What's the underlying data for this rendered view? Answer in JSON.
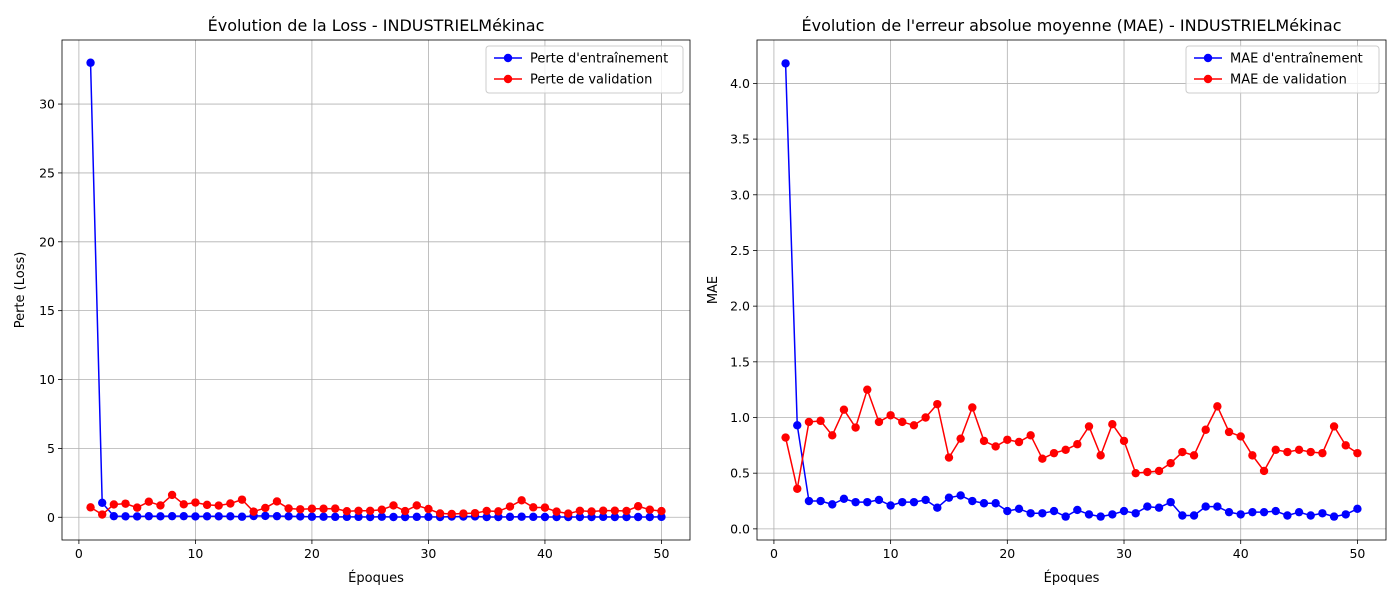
{
  "chart_data": [
    {
      "type": "line",
      "title": "Évolution de la Loss - INDUSTRIELMékinac",
      "xlabel": "Époques",
      "ylabel": "Perte (Loss)",
      "xlim": [
        -1.45,
        52.45
      ],
      "ylim": [
        -1.65,
        34.65
      ],
      "xticks": [
        0,
        10,
        20,
        30,
        40,
        50
      ],
      "xtick_labels": [
        "0",
        "10",
        "20",
        "30",
        "40",
        "50"
      ],
      "yticks": [
        0,
        5,
        10,
        15,
        20,
        25,
        30
      ],
      "ytick_labels": [
        "0",
        "5",
        "10",
        "15",
        "20",
        "25",
        "30"
      ],
      "grid": true,
      "legend_position": "top-right",
      "x": [
        1,
        2,
        3,
        4,
        5,
        6,
        7,
        8,
        9,
        10,
        11,
        12,
        13,
        14,
        15,
        16,
        17,
        18,
        19,
        20,
        21,
        22,
        23,
        24,
        25,
        26,
        27,
        28,
        29,
        30,
        31,
        32,
        33,
        34,
        35,
        36,
        37,
        38,
        39,
        40,
        41,
        42,
        43,
        44,
        45,
        46,
        47,
        48,
        49,
        50
      ],
      "series": [
        {
          "name": "Perte d'entraînement",
          "color": "#0000ff",
          "values": [
            33.0,
            1.05,
            0.08,
            0.07,
            0.06,
            0.08,
            0.07,
            0.08,
            0.08,
            0.06,
            0.07,
            0.07,
            0.07,
            0.04,
            0.09,
            0.1,
            0.08,
            0.07,
            0.06,
            0.04,
            0.04,
            0.03,
            0.03,
            0.03,
            0.02,
            0.04,
            0.02,
            0.02,
            0.03,
            0.03,
            0.02,
            0.05,
            0.05,
            0.06,
            0.02,
            0.02,
            0.03,
            0.04,
            0.03,
            0.02,
            0.02,
            0.02,
            0.02,
            0.02,
            0.03,
            0.02,
            0.02,
            0.02,
            0.02,
            0.03
          ]
        },
        {
          "name": "Perte de validation",
          "color": "#ff0000",
          "values": [
            0.72,
            0.2,
            0.93,
            0.99,
            0.7,
            1.13,
            0.86,
            1.62,
            0.94,
            1.07,
            0.9,
            0.85,
            1.0,
            1.28,
            0.41,
            0.68,
            1.15,
            0.64,
            0.58,
            0.62,
            0.62,
            0.63,
            0.44,
            0.47,
            0.47,
            0.55,
            0.86,
            0.45,
            0.86,
            0.6,
            0.28,
            0.24,
            0.27,
            0.3,
            0.46,
            0.43,
            0.78,
            1.23,
            0.72,
            0.7,
            0.41,
            0.27,
            0.47,
            0.42,
            0.48,
            0.48,
            0.46,
            0.8,
            0.55,
            0.45
          ]
        }
      ]
    },
    {
      "type": "line",
      "title": "Évolution de l'erreur absolue moyenne (MAE) - INDUSTRIELMékinac",
      "xlabel": "Époques",
      "ylabel": "MAE",
      "xlim": [
        -1.45,
        52.45
      ],
      "ylim": [
        -0.1,
        4.39
      ],
      "xticks": [
        0,
        10,
        20,
        30,
        40,
        50
      ],
      "xtick_labels": [
        "0",
        "10",
        "20",
        "30",
        "40",
        "50"
      ],
      "yticks": [
        0,
        0.5,
        1.0,
        1.5,
        2.0,
        2.5,
        3.0,
        3.5,
        4.0
      ],
      "ytick_labels": [
        "0.0",
        "0.5",
        "1.0",
        "1.5",
        "2.0",
        "2.5",
        "3.0",
        "3.5",
        "4.0"
      ],
      "grid": true,
      "legend_position": "top-right",
      "x": [
        1,
        2,
        3,
        4,
        5,
        6,
        7,
        8,
        9,
        10,
        11,
        12,
        13,
        14,
        15,
        16,
        17,
        18,
        19,
        20,
        21,
        22,
        23,
        24,
        25,
        26,
        27,
        28,
        29,
        30,
        31,
        32,
        33,
        34,
        35,
        36,
        37,
        38,
        39,
        40,
        41,
        42,
        43,
        44,
        45,
        46,
        47,
        48,
        49,
        50
      ],
      "series": [
        {
          "name": "MAE d'entraînement",
          "color": "#0000ff",
          "values": [
            4.18,
            0.93,
            0.25,
            0.25,
            0.22,
            0.27,
            0.24,
            0.24,
            0.26,
            0.21,
            0.24,
            0.24,
            0.26,
            0.19,
            0.28,
            0.3,
            0.25,
            0.23,
            0.23,
            0.16,
            0.18,
            0.14,
            0.14,
            0.16,
            0.11,
            0.17,
            0.13,
            0.11,
            0.13,
            0.16,
            0.14,
            0.2,
            0.19,
            0.24,
            0.12,
            0.12,
            0.2,
            0.2,
            0.15,
            0.13,
            0.15,
            0.15,
            0.16,
            0.12,
            0.15,
            0.12,
            0.14,
            0.11,
            0.13,
            0.18
          ]
        },
        {
          "name": "MAE de validation",
          "color": "#ff0000",
          "values": [
            0.82,
            0.36,
            0.96,
            0.97,
            0.84,
            1.07,
            0.91,
            1.25,
            0.96,
            1.02,
            0.96,
            0.93,
            1.0,
            1.12,
            0.64,
            0.81,
            1.09,
            0.79,
            0.74,
            0.8,
            0.78,
            0.84,
            0.63,
            0.68,
            0.71,
            0.76,
            0.92,
            0.66,
            0.94,
            0.79,
            0.5,
            0.51,
            0.52,
            0.59,
            0.69,
            0.66,
            0.89,
            1.1,
            0.87,
            0.83,
            0.66,
            0.52,
            0.71,
            0.69,
            0.71,
            0.69,
            0.68,
            0.92,
            0.75,
            0.68
          ]
        }
      ]
    }
  ]
}
